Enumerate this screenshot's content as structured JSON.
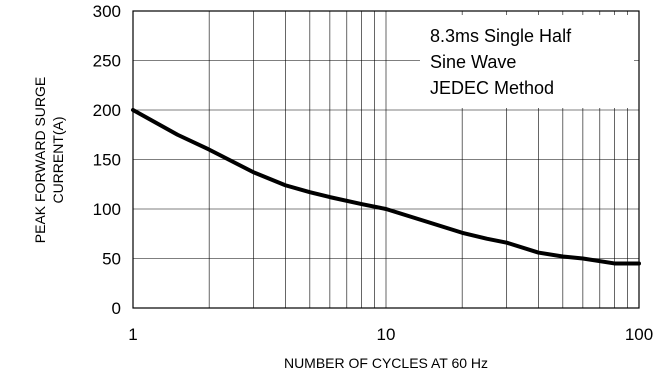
{
  "chart_data": {
    "type": "line",
    "xscale": "log",
    "xlim": [
      1,
      100
    ],
    "ylim": [
      0,
      300
    ],
    "grid": true,
    "xlabel": "NUMBER OF CYCLES AT 60 Hz",
    "ylabel_lines": [
      "PEAK FORWARD SURGE",
      "CURRENT(A)"
    ],
    "x_ticks": [
      "1",
      "10",
      "100"
    ],
    "y_ticks": [
      "0",
      "50",
      "100",
      "150",
      "200",
      "250",
      "300"
    ],
    "annotation_lines": [
      "8.3ms Single Half",
      "Sine Wave",
      "JEDEC Method"
    ],
    "series": [
      {
        "x": [
          1,
          1.5,
          2,
          3,
          4,
          5,
          6,
          8,
          10,
          15,
          20,
          25,
          30,
          40,
          50,
          60,
          80,
          100
        ],
        "y": [
          200,
          175,
          160,
          137,
          124,
          117,
          112,
          105,
          100,
          86,
          76,
          70,
          66,
          56,
          52,
          50,
          45,
          45
        ]
      }
    ]
  }
}
